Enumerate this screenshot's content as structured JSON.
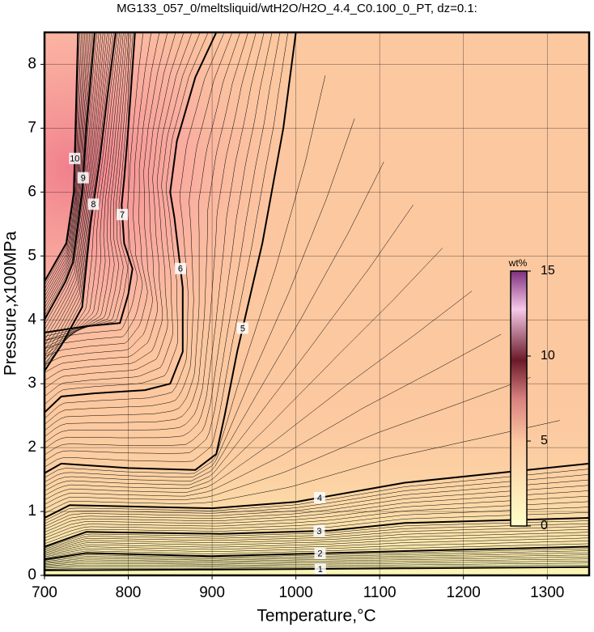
{
  "chart_data": {
    "type": "contour",
    "title": "MG133_057_0/meltsliquid/wtH2O/H2O_4.4_C0.100_0_PT, dz=0.1:",
    "xlabel": "Temperature,°C",
    "ylabel": "Pressure,x100MPa",
    "xlim": [
      700,
      1350
    ],
    "ylim": [
      0,
      8.5
    ],
    "xticks": [
      700,
      800,
      900,
      1000,
      1100,
      1200,
      1300
    ],
    "yticks": [
      0,
      1,
      2,
      3,
      4,
      5,
      6,
      7,
      8
    ],
    "grid": true,
    "contours": [
      {
        "level": 1,
        "x": [
          700,
          900,
          1130,
          1350
        ],
        "y": [
          0.08,
          0.09,
          0.11,
          0.13
        ]
      },
      {
        "level": 2,
        "x": [
          700,
          750,
          900,
          1130,
          1350
        ],
        "y": [
          0.25,
          0.35,
          0.3,
          0.38,
          0.45
        ]
      },
      {
        "level": 3,
        "x": [
          700,
          750,
          910,
          1040,
          1130,
          1350
        ],
        "y": [
          0.45,
          0.68,
          0.65,
          0.7,
          0.82,
          0.9
        ]
      },
      {
        "level": 4,
        "x": [
          700,
          730,
          900,
          1000,
          1130,
          1350
        ],
        "y": [
          0.9,
          1.1,
          1.05,
          1.15,
          1.45,
          1.75
        ]
      },
      {
        "level": 5,
        "x": [
          700,
          720,
          800,
          880,
          905,
          915,
          930,
          960,
          985,
          1000
        ],
        "y": [
          1.6,
          1.75,
          1.68,
          1.65,
          1.9,
          2.5,
          3.5,
          5.2,
          7.0,
          8.5
        ]
      },
      {
        "level": 6,
        "x": [
          700,
          720,
          760,
          820,
          850,
          865,
          865,
          855,
          850,
          858,
          880,
          905
        ],
        "y": [
          2.55,
          2.8,
          2.85,
          2.9,
          3.0,
          3.5,
          4.5,
          5.6,
          6.0,
          6.8,
          7.8,
          8.5
        ]
      },
      {
        "level": 7,
        "x": [
          700,
          750,
          790,
          800,
          805,
          795,
          792,
          795,
          800,
          808
        ],
        "y": [
          3.8,
          3.9,
          3.95,
          4.4,
          4.8,
          5.2,
          5.8,
          6.2,
          7.0,
          8.5
        ]
      },
      {
        "level": 8,
        "x": [
          700,
          720,
          745,
          748,
          755,
          766,
          775,
          785
        ],
        "y": [
          3.2,
          3.6,
          4.2,
          4.6,
          5.5,
          6.5,
          7.5,
          8.5
        ]
      },
      {
        "level": 9,
        "x": [
          700,
          725,
          734,
          745,
          750,
          760
        ],
        "y": [
          4.0,
          4.6,
          4.9,
          6.0,
          7.0,
          8.5
        ]
      },
      {
        "level": 10,
        "x": [
          700,
          726,
          735,
          740
        ],
        "y": [
          4.6,
          5.2,
          6.0,
          8.5
        ]
      }
    ],
    "colorbar": {
      "label": "wt%",
      "lim": [
        0,
        15
      ],
      "ticks": [
        0,
        5,
        10,
        15
      ]
    }
  }
}
